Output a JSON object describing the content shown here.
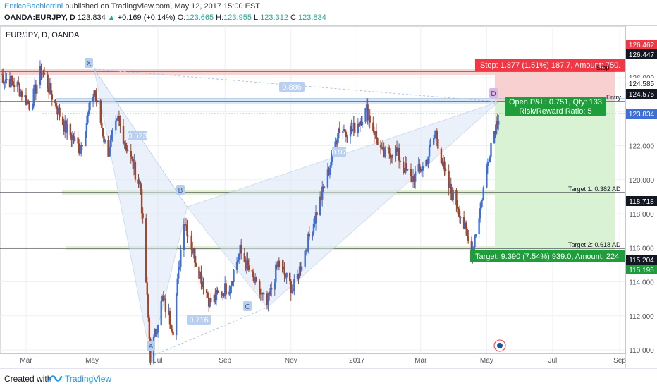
{
  "header": {
    "author": "EnricoBachiorrini",
    "published": "published on TradingView.com, May 12, 2017 15:00 EST",
    "symbol": "OANDA:EURJPY, D",
    "last": "123.834",
    "change_arrow": "▲",
    "change": "+0.169 (+0.14%)",
    "open_label": "O:",
    "open": "123.665",
    "high_label": "H:",
    "high": "123.955",
    "low_label": "L:",
    "low": "123.312",
    "close_label": "C:",
    "close": "123.834"
  },
  "chart": {
    "legend": "EUR/JPY, D, OANDA",
    "pattern_labels": {
      "X": "X",
      "A": "A",
      "B": "B",
      "C": "C",
      "D": "D",
      "xb": "0.886",
      "ab": "0.523",
      "bc": "0.716",
      "bd": "0.97"
    },
    "position": {
      "stop_box": "Stop: 1.877 (1.51%) 187.7, Amount: 750.",
      "stop_tag": "Stop",
      "entry_tag": "Entry",
      "open_pnl": "Open P&L: 0.751, Qty: 133",
      "rr": "Risk/Reward Ratio: 5",
      "target_box": "Target: 9.390 (7.54%) 939.0, Amount: 224",
      "target1_label": "Target 1: 0.382 AD",
      "target2_label": "Target 2: 0.618 AD"
    },
    "price_tags": {
      "stop_price": "126.462",
      "x_price": "126.447",
      "upper_entry": "124.585",
      "entry": "124.575",
      "current": "123.834",
      "target1": "118.718",
      "target2": "115.204",
      "target_price": "115.195"
    },
    "colors": {
      "bull": "#3d6fd6",
      "bear": "#a0442a",
      "stop_fill": "#f7c8c8",
      "target_fill": "#d4f0cc",
      "pattern_fill": "#dbe6f7",
      "accent_blue": "#2196f3",
      "red_tag": "#f23645",
      "green_tag": "#1e9e3a"
    }
  },
  "chart_data": {
    "type": "candlestick",
    "title": "EUR/JPY, D, OANDA",
    "xlabel": "",
    "ylabel": "",
    "x_ticks": [
      "Mar",
      "May",
      "Jul",
      "Sep",
      "Nov",
      "2017",
      "Mar",
      "May",
      "Jul",
      "Sep"
    ],
    "y_ticks": [
      "126.000",
      "124.000",
      "122.000",
      "120.000",
      "118.000",
      "116.000",
      "114.000",
      "112.000",
      "110.000"
    ],
    "ylim": [
      108.6,
      127.1
    ],
    "grid": true,
    "anchors": [
      {
        "date": "2016-02-05",
        "price": 126.2
      },
      {
        "date": "2016-02-22",
        "price": 125.5
      },
      {
        "date": "2016-03-05",
        "price": 124.3
      },
      {
        "date": "2016-03-15",
        "price": 126.5
      },
      {
        "date": "2016-04-05",
        "price": 123.2
      },
      {
        "date": "2016-04-20",
        "price": 121.8
      },
      {
        "date": "2016-05-03",
        "price": 125.3
      },
      {
        "date": "2016-05-15",
        "price": 121.5
      },
      {
        "date": "2016-05-25",
        "price": 123.5
      },
      {
        "date": "2016-06-15",
        "price": 119.5
      },
      {
        "date": "2016-06-24",
        "price": 109.6
      },
      {
        "date": "2016-07-05",
        "price": 113.0
      },
      {
        "date": "2016-07-15",
        "price": 111.3
      },
      {
        "date": "2016-07-25",
        "price": 117.8
      },
      {
        "date": "2016-08-05",
        "price": 115.2
      },
      {
        "date": "2016-08-18",
        "price": 112.8
      },
      {
        "date": "2016-09-05",
        "price": 113.8
      },
      {
        "date": "2016-09-15",
        "price": 115.8
      },
      {
        "date": "2016-09-30",
        "price": 113.7
      },
      {
        "date": "2016-10-10",
        "price": 112.6
      },
      {
        "date": "2016-10-20",
        "price": 115.1
      },
      {
        "date": "2016-11-03",
        "price": 113.5
      },
      {
        "date": "2016-11-15",
        "price": 116.0
      },
      {
        "date": "2016-12-05",
        "price": 120.3
      },
      {
        "date": "2016-12-15",
        "price": 123.0
      },
      {
        "date": "2016-12-28",
        "price": 122.9
      },
      {
        "date": "2017-01-10",
        "price": 124.1
      },
      {
        "date": "2017-01-25",
        "price": 121.4
      },
      {
        "date": "2017-02-05",
        "price": 121.8
      },
      {
        "date": "2017-02-20",
        "price": 120.0
      },
      {
        "date": "2017-03-05",
        "price": 120.9
      },
      {
        "date": "2017-03-15",
        "price": 122.8
      },
      {
        "date": "2017-03-25",
        "price": 119.8
      },
      {
        "date": "2017-04-05",
        "price": 118.4
      },
      {
        "date": "2017-04-17",
        "price": 115.7
      },
      {
        "date": "2017-04-25",
        "price": 118.3
      },
      {
        "date": "2017-05-05",
        "price": 122.2
      },
      {
        "date": "2017-05-12",
        "price": 123.83
      }
    ],
    "pattern_points": [
      {
        "label": "X",
        "date": "2016-05-03",
        "price": 126.5
      },
      {
        "label": "A",
        "date": "2016-06-24",
        "price": 109.6
      },
      {
        "label": "B",
        "date": "2016-07-28",
        "price": 118.4
      },
      {
        "label": "C",
        "date": "2016-10-10",
        "price": 112.5
      },
      {
        "label": "D",
        "date": "2017-05-12",
        "price": 124.58
      }
    ],
    "levels": [
      {
        "name": "Stop",
        "price": 126.462
      },
      {
        "name": "Entry",
        "price": 124.575
      },
      {
        "name": "Target 1: 0.382 AD",
        "price": 118.718
      },
      {
        "name": "Target 2: 0.618 AD",
        "price": 115.204
      }
    ]
  }
}
